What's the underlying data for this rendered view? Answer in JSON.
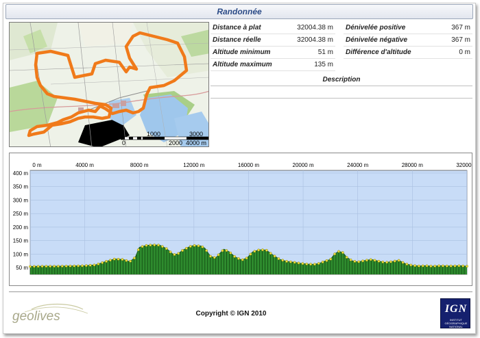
{
  "title": "Randonnée",
  "stats": [
    {
      "label": "Distance à plat",
      "value": "32004.38 m"
    },
    {
      "label": "Dénivelée positive",
      "value": "367 m"
    },
    {
      "label": "Distance réelle",
      "value": "32004.38 m"
    },
    {
      "label": "Dénivelée négative",
      "value": "367 m"
    },
    {
      "label": "Altitude minimum",
      "value": "51 m"
    },
    {
      "label": "Différence d'altitude",
      "value": "0 m"
    },
    {
      "label": "Altitude maximum",
      "value": "135 m"
    }
  ],
  "description": {
    "heading": "Description",
    "text": ""
  },
  "map": {
    "scale_top": [
      "1000",
      "3000"
    ],
    "scale_bottom": [
      "0",
      "2000",
      "4000 m"
    ]
  },
  "footer": {
    "logo_text": "geolives",
    "copyright": "Copyright © IGN 2010",
    "ign_logo": "IGN",
    "ign_subtext": "INSTITUT GÉOGRAPHIQUE NATIONAL"
  },
  "colors": {
    "title": "#2a4a86",
    "profile_bg": "#c8dcf7",
    "profile_fill": "#2e8b2e",
    "route": "#f07a1a"
  },
  "chart_data": {
    "type": "area",
    "title": "",
    "xlabel": "",
    "ylabel": "",
    "x_ticks": [
      "0 m",
      "4000 m",
      "8000 m",
      "12000 m",
      "16000 m",
      "20000 m",
      "24000 m",
      "28000 m",
      "32000 m"
    ],
    "y_ticks": [
      "50 m",
      "100 m",
      "150 m",
      "200 m",
      "250 m",
      "300 m",
      "350 m",
      "400 m"
    ],
    "xlim": [
      0,
      32004.38
    ],
    "ylim": [
      25,
      410
    ],
    "grid": true,
    "series": [
      {
        "x": [
          0,
          1000,
          2000,
          3000,
          4000,
          4800,
          5500,
          6200,
          6800,
          7300,
          7700,
          8000,
          8500,
          9000,
          9500,
          10000,
          10500,
          10800,
          11200,
          11700,
          12000,
          12500,
          12800,
          13200,
          13600,
          13900,
          14200,
          14600,
          15000,
          15500,
          15900,
          16300,
          16800,
          17300,
          17800,
          18300,
          18800,
          19300,
          19800,
          20300,
          20800,
          21200,
          21600,
          22000,
          22300,
          22600,
          22900,
          23200,
          23600,
          24000,
          24500,
          25000,
          25500,
          26000,
          26500,
          27000,
          27500,
          28000,
          28500,
          29000,
          29500,
          30000,
          30500,
          31000,
          31500,
          32004
        ],
        "y": [
          54,
          55,
          55,
          56,
          57,
          60,
          72,
          82,
          80,
          72,
          88,
          125,
          132,
          134,
          133,
          120,
          98,
          100,
          115,
          128,
          132,
          130,
          122,
          92,
          86,
          103,
          118,
          108,
          90,
          78,
          86,
          108,
          116,
          115,
          96,
          80,
          73,
          70,
          66,
          63,
          62,
          66,
          74,
          80,
          100,
          110,
          106,
          88,
          75,
          71,
          76,
          80,
          74,
          69,
          72,
          77,
          64,
          58,
          56,
          57,
          55,
          57,
          56,
          56,
          57,
          55
        ]
      }
    ]
  }
}
